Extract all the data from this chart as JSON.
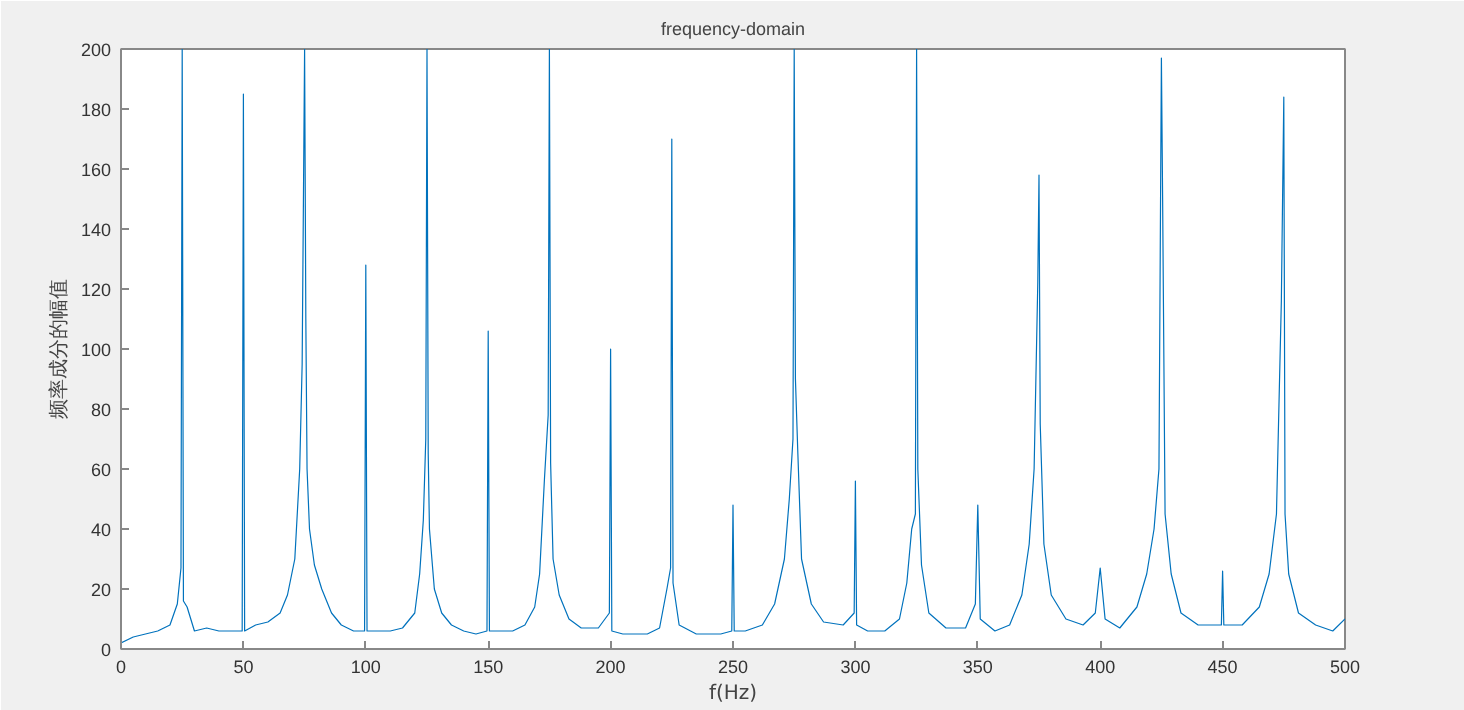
{
  "chart_data": {
    "type": "line",
    "title": "frequency-domain",
    "xlabel": "f(Hz)",
    "ylabel": "频率成分的幅值",
    "xlim": [
      0,
      500
    ],
    "ylim": [
      0,
      200
    ],
    "xticks": [
      0,
      50,
      100,
      150,
      200,
      250,
      300,
      350,
      400,
      450,
      500
    ],
    "yticks": [
      0,
      20,
      40,
      60,
      80,
      100,
      120,
      140,
      160,
      180,
      200
    ],
    "grid": false,
    "series": [
      {
        "color": "#0072bd",
        "x": [
          0,
          5,
          10,
          15,
          20,
          23,
          24.5,
          25,
          25.5,
          27,
          30,
          35,
          40,
          45,
          49.5,
          50,
          50.5,
          55,
          60,
          65,
          68,
          71,
          73,
          74,
          75,
          75.5,
          76,
          77,
          79,
          82,
          86,
          90,
          95,
          99.5,
          100,
          100.5,
          105,
          110,
          115,
          120,
          122,
          123.5,
          124.5,
          125,
          125.5,
          126,
          128,
          131,
          135,
          140,
          145,
          149.5,
          150,
          150.5,
          155,
          160,
          165,
          169,
          171,
          173,
          174.5,
          175,
          175.5,
          176.5,
          179,
          183,
          188,
          195,
          199.5,
          200,
          200.5,
          205,
          210,
          215,
          220,
          223,
          224.5,
          225,
          225.5,
          228,
          235,
          245,
          249.5,
          250,
          250.5,
          255,
          262,
          267,
          271,
          273,
          274.5,
          275,
          275.5,
          276.5,
          278,
          282,
          287,
          295,
          299.5,
          300,
          300.5,
          305,
          312,
          318,
          321,
          323,
          324.5,
          325,
          325.5,
          327,
          330,
          337,
          345,
          349,
          350,
          351,
          357,
          363,
          368,
          371,
          373,
          374.5,
          375,
          375.5,
          377,
          380,
          386,
          393,
          398,
          400,
          402,
          408,
          415,
          419,
          422,
          424,
          425,
          425.5,
          426.5,
          429,
          433,
          440,
          449.5,
          450,
          450.5,
          458,
          465,
          469,
          472,
          474,
          475,
          475.5,
          477,
          481,
          488,
          495,
          500
        ],
        "values": [
          2,
          4,
          5,
          6,
          8,
          15,
          27,
          200,
          16,
          14,
          6,
          7,
          6,
          6,
          6,
          185,
          6,
          8,
          9,
          12,
          18,
          30,
          60,
          95,
          200,
          110,
          60,
          40,
          28,
          20,
          12,
          8,
          6,
          6,
          128,
          6,
          6,
          6,
          7,
          12,
          25,
          43,
          70,
          200,
          65,
          40,
          20,
          12,
          8,
          6,
          5,
          6,
          106,
          6,
          6,
          6,
          8,
          14,
          25,
          57,
          78,
          200,
          62,
          30,
          18,
          10,
          7,
          7,
          12,
          100,
          6,
          5,
          5,
          5,
          7,
          20,
          27,
          170,
          22,
          8,
          5,
          5,
          6,
          48,
          6,
          6,
          8,
          15,
          30,
          50,
          70,
          200,
          90,
          65,
          30,
          15,
          9,
          8,
          12,
          56,
          8,
          6,
          6,
          10,
          22,
          40,
          45,
          200,
          60,
          28,
          12,
          7,
          7,
          15,
          48,
          10,
          6,
          8,
          18,
          35,
          60,
          122,
          158,
          75,
          35,
          18,
          10,
          8,
          12,
          27,
          10,
          7,
          14,
          25,
          40,
          60,
          197,
          150,
          45,
          25,
          12,
          8,
          8,
          26,
          8,
          8,
          14,
          25,
          45,
          116,
          184,
          45,
          25,
          12,
          8,
          6,
          10
        ]
      }
    ]
  }
}
